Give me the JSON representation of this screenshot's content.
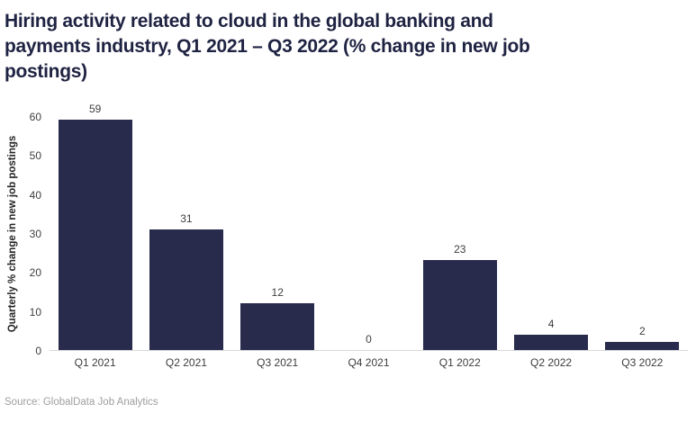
{
  "title": {
    "lines": [
      "Hiring activity related to cloud in the global banking and",
      "payments industry, Q1 2021 – Q3 2022 (% change in new job",
      "postings)"
    ],
    "full": "Hiring activity related to cloud in the global banking and payments industry, Q1 2021 – Q3 2022 (% change in new job postings)"
  },
  "source_text": "Source: GlobalData Job Analytics",
  "colors": {
    "bar": "#282b4c",
    "title": "#1f2342",
    "axis_text": "#3d3d3d",
    "baseline": "#d8d8d8",
    "source_text": "#9e9e9e"
  },
  "chart_data": {
    "type": "bar",
    "title": "Hiring activity related to cloud in the global banking and payments industry, Q1 2021 – Q3 2022 (% change in new job postings)",
    "categories": [
      "Q1 2021",
      "Q2 2021",
      "Q3 2021",
      "Q4 2021",
      "Q1 2022",
      "Q2 2022",
      "Q3 2022"
    ],
    "values": [
      59,
      31,
      12,
      0,
      23,
      4,
      2
    ],
    "xlabel": "",
    "ylabel": "Quarterly % change in new job postings",
    "ylim": [
      0,
      60
    ],
    "yticks": [
      0,
      10,
      20,
      30,
      40,
      50,
      60
    ],
    "grid": false,
    "legend_position": "none",
    "data_labels": true,
    "source": "Source: GlobalData Job Analytics"
  }
}
